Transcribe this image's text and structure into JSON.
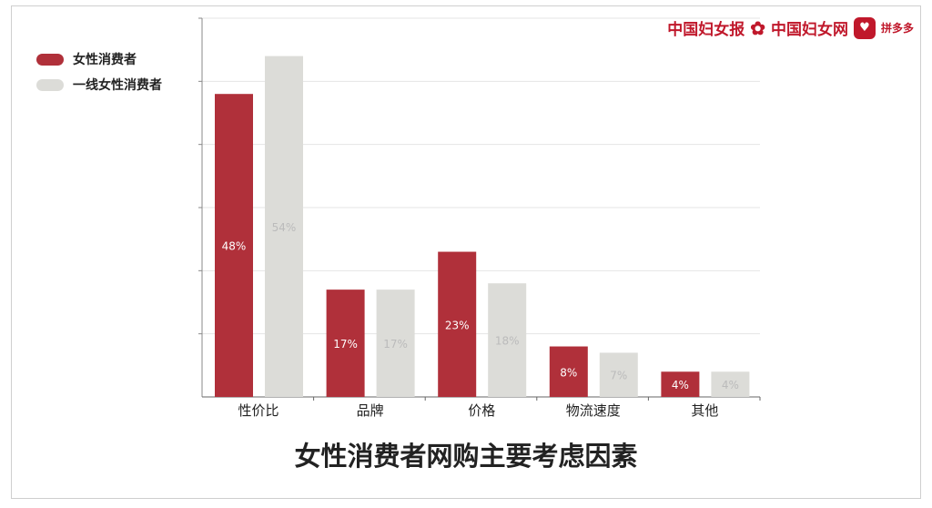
{
  "logos": {
    "brand1": "中国妇女报",
    "brand2": "中国妇女网",
    "brand3": "拼多多"
  },
  "chart_data": {
    "type": "bar",
    "title": "女性消费者网购主要考虑因素",
    "categories": [
      "性价比",
      "品牌",
      "价格",
      "物流速度",
      "其他"
    ],
    "series": [
      {
        "name": "女性消费者",
        "values": [
          48,
          17,
          23,
          8,
          4
        ],
        "labels": [
          "48%",
          "17%",
          "23%",
          "8%",
          "4%"
        ],
        "color": "#b0303a"
      },
      {
        "name": "一线女性消费者",
        "values": [
          54,
          17,
          18,
          7,
          4
        ],
        "labels": [
          "54%",
          "17%",
          "18%",
          "7%",
          "4%"
        ],
        "color": "#dcdcd8"
      }
    ],
    "ylim": [
      0,
      60
    ],
    "grid": true,
    "legend": "top-left"
  }
}
